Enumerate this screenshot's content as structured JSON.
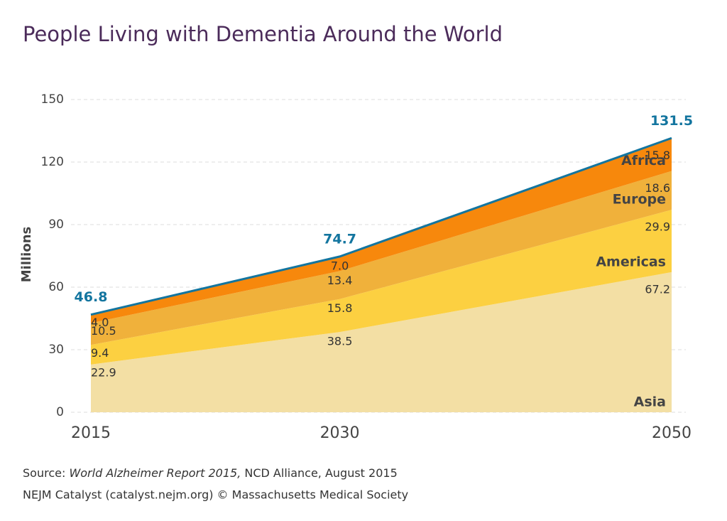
{
  "chart_data": {
    "type": "stacked-area",
    "title": "People Living with Dementia Around the World",
    "y_label": "Millions",
    "x": [
      2015,
      2030,
      2050
    ],
    "xlim": [
      2015,
      2050
    ],
    "xticks": [
      2015,
      2030,
      2050
    ],
    "ylim": [
      0,
      150
    ],
    "yticks": [
      0,
      30,
      60,
      90,
      120,
      150
    ],
    "grid": true,
    "series": [
      {
        "name": "Asia",
        "color": "#f3dfa4",
        "values": [
          22.9,
          38.5,
          67.2
        ]
      },
      {
        "name": "Americas",
        "color": "#fcd041",
        "values": [
          9.4,
          15.8,
          29.9
        ]
      },
      {
        "name": "Europe",
        "color": "#f0b13b",
        "values": [
          10.5,
          13.4,
          18.6
        ]
      },
      {
        "name": "Africa",
        "color": "#f7880c",
        "values": [
          4.0,
          7.0,
          15.8
        ],
        "value_labels": [
          "4.0",
          "7.0",
          "15.8"
        ]
      }
    ],
    "totals": {
      "color": "#13759f",
      "values": [
        46.8,
        74.7,
        131.5
      ]
    },
    "source": {
      "prefix": "Source:",
      "title": "World Alzheimer Report 2015,",
      "rest": "NCD Alliance, August 2015"
    },
    "credit": "NEJM Catalyst (catalyst.nejm.org) © Massachusetts Medical Society"
  }
}
